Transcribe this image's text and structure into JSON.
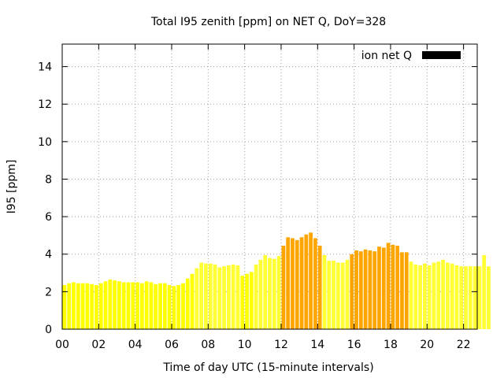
{
  "chart_data": {
    "type": "bar",
    "title": "Total I95 zenith [ppm] on NET Q, DoY=328",
    "xlabel": "Time of day UTC (15-minute intervals)",
    "ylabel": "I95 [ppm]",
    "ylim": [
      0,
      15.2
    ],
    "xlim": [
      0,
      22.75
    ],
    "x_ticks": [
      0,
      2,
      4,
      6,
      8,
      10,
      12,
      14,
      16,
      18,
      20,
      22
    ],
    "x_tick_labels": [
      "00",
      "02",
      "04",
      "06",
      "08",
      "10",
      "12",
      "14",
      "16",
      "18",
      "20",
      "22"
    ],
    "y_ticks": [
      0,
      2,
      4,
      6,
      8,
      10,
      12,
      14
    ],
    "y_tick_labels": [
      "0",
      "2",
      "4",
      "6",
      "8",
      "10",
      "12",
      "14"
    ],
    "grid": true,
    "legend": {
      "label": "ion net Q",
      "color": "#000000",
      "placement": "top-right"
    },
    "colors": {
      "low": "#ffff00",
      "mid": "#ffff33",
      "high": "#ffa500"
    },
    "interval_hours": 0.25,
    "values": [
      2.35,
      2.45,
      2.5,
      2.45,
      2.45,
      2.45,
      2.4,
      2.35,
      2.45,
      2.55,
      2.65,
      2.6,
      2.55,
      2.5,
      2.5,
      2.5,
      2.5,
      2.45,
      2.55,
      2.5,
      2.4,
      2.45,
      2.45,
      2.35,
      2.3,
      2.35,
      2.45,
      2.7,
      2.95,
      3.25,
      3.55,
      3.5,
      3.5,
      3.45,
      3.3,
      3.35,
      3.4,
      3.45,
      3.4,
      2.85,
      2.95,
      3.05,
      3.45,
      3.7,
      3.95,
      3.8,
      3.75,
      3.9,
      4.45,
      4.9,
      4.85,
      4.75,
      4.9,
      5.05,
      5.15,
      4.85,
      4.45,
      3.95,
      3.65,
      3.65,
      3.55,
      3.55,
      3.7,
      4.0,
      4.2,
      4.15,
      4.25,
      4.2,
      4.15,
      4.4,
      4.35,
      4.6,
      4.5,
      4.45,
      4.1,
      4.1,
      3.6,
      3.45,
      3.4,
      3.5,
      3.4,
      3.55,
      3.6,
      3.7,
      3.55,
      3.5,
      3.4,
      3.35,
      3.35,
      3.35,
      3.35,
      3.35,
      3.95,
      3.35
    ],
    "colors_per_bar": [
      "low",
      "low",
      "low",
      "low",
      "low",
      "low",
      "low",
      "low",
      "low",
      "low",
      "low",
      "low",
      "low",
      "low",
      "low",
      "low",
      "low",
      "low",
      "low",
      "low",
      "low",
      "low",
      "low",
      "low",
      "low",
      "low",
      "low",
      "low",
      "low",
      "mid",
      "mid",
      "mid",
      "mid",
      "mid",
      "mid",
      "mid",
      "mid",
      "mid",
      "mid",
      "low",
      "low",
      "low",
      "mid",
      "mid",
      "mid",
      "mid",
      "mid",
      "mid",
      "high",
      "high",
      "high",
      "high",
      "high",
      "high",
      "high",
      "high",
      "high",
      "mid",
      "mid",
      "mid",
      "mid",
      "mid",
      "mid",
      "high",
      "high",
      "high",
      "high",
      "high",
      "high",
      "high",
      "high",
      "high",
      "high",
      "high",
      "high",
      "high",
      "mid",
      "mid",
      "mid",
      "mid",
      "mid",
      "mid",
      "mid",
      "mid",
      "mid",
      "mid",
      "mid",
      "mid",
      "mid",
      "mid",
      "mid",
      "mid",
      "mid",
      "mid"
    ]
  }
}
